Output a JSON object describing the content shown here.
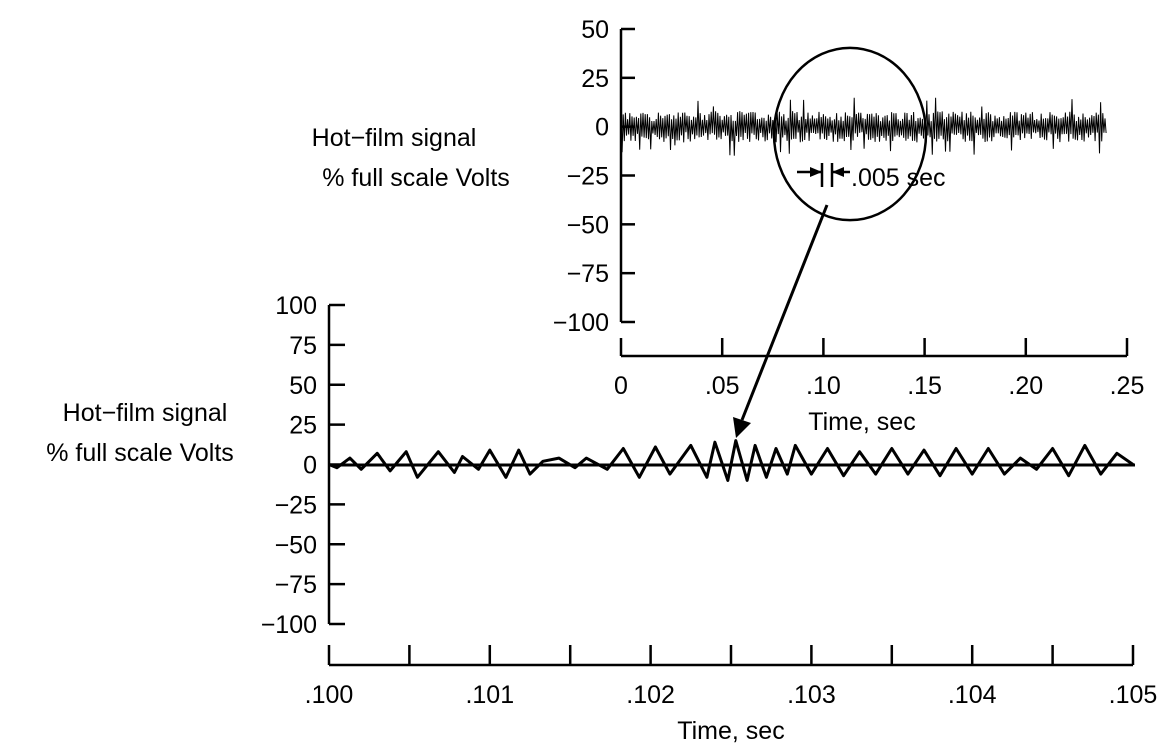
{
  "chart_data": [
    {
      "type": "line",
      "panel": "overview",
      "xlabel": "Time, sec",
      "ylabel_lines": [
        "Hot−film signal",
        "% full scale Volts"
      ],
      "x_ticks": [
        0,
        0.05,
        0.1,
        0.15,
        0.2,
        0.25
      ],
      "x_tick_labels": [
        "0",
        ".05",
        ".10",
        ".15",
        ".20",
        ".25"
      ],
      "y_ticks": [
        50,
        25,
        0,
        -25,
        -50,
        -75,
        -100
      ],
      "y_tick_labels": [
        "50",
        "25",
        "0",
        "−25",
        "−50",
        "−75",
        "−100"
      ],
      "xlim": [
        0,
        0.25
      ],
      "ylim": [
        -100,
        50
      ],
      "grid": false,
      "series": [
        {
          "x_range": [
            0,
            0.24
          ],
          "typical_amplitude": 8,
          "peak_amplitude": 15
        }
      ],
      "annotations": [
        {
          "text": ".005 sec",
          "x": 0.112,
          "y": -20
        }
      ],
      "zoom_circle": {
        "center_x": 0.113,
        "center_y": -5
      }
    },
    {
      "type": "line",
      "panel": "zoom",
      "xlabel": "Time, sec",
      "ylabel_lines": [
        "Hot−film signal",
        "% full scale Volts"
      ],
      "x_ticks": [
        0.1,
        0.1005,
        0.101,
        0.1015,
        0.102,
        0.1025,
        0.103,
        0.1035,
        0.104,
        0.1045,
        0.105
      ],
      "x_tick_labels": [
        ".100",
        "",
        ".101",
        "",
        ".102",
        "",
        ".103",
        "",
        ".104",
        "",
        ".105"
      ],
      "y_ticks": [
        100,
        75,
        50,
        25,
        0,
        -25,
        -50,
        -75,
        -100
      ],
      "y_tick_labels": [
        "100",
        "75",
        "50",
        "25",
        "0",
        "−25",
        "−50",
        "−75",
        "−100"
      ],
      "xlim": [
        0.1,
        0.105
      ],
      "ylim": [
        -100,
        100
      ],
      "grid": false,
      "series": [
        {
          "x": [
            0.1,
            0.10005,
            0.10013,
            0.1002,
            0.1003,
            0.10038,
            0.10048,
            0.10055,
            0.10068,
            0.10078,
            0.10083,
            0.10093,
            0.101,
            0.1011,
            0.10118,
            0.10125,
            0.10133,
            0.10143,
            0.10153,
            0.1016,
            0.10173,
            0.10183,
            0.10193,
            0.10203,
            0.10212,
            0.10225,
            0.10235,
            0.1024,
            0.10248,
            0.10253,
            0.1026,
            0.10265,
            0.10272,
            0.10278,
            0.10285,
            0.1029,
            0.103,
            0.1031,
            0.1032,
            0.1033,
            0.1034,
            0.1035,
            0.1036,
            0.1037,
            0.1038,
            0.1039,
            0.104,
            0.1041,
            0.1042,
            0.1043,
            0.1044,
            0.1045,
            0.1046,
            0.1047,
            0.1048,
            0.1049,
            0.105
          ],
          "y": [
            0,
            -2,
            4,
            -3,
            7,
            -4,
            8,
            -8,
            8,
            -5,
            5,
            -3,
            9,
            -8,
            9,
            -6,
            2,
            4,
            -2,
            4,
            -3,
            10,
            -8,
            11,
            -6,
            12,
            -8,
            14,
            -10,
            15,
            -10,
            12,
            -8,
            10,
            -6,
            12,
            -6,
            10,
            -7,
            8,
            -6,
            10,
            -6,
            9,
            -7,
            10,
            -6,
            10,
            -6,
            4,
            -3,
            10,
            -7,
            12,
            -6,
            7,
            0
          ]
        }
      ],
      "zero_line": true
    }
  ]
}
